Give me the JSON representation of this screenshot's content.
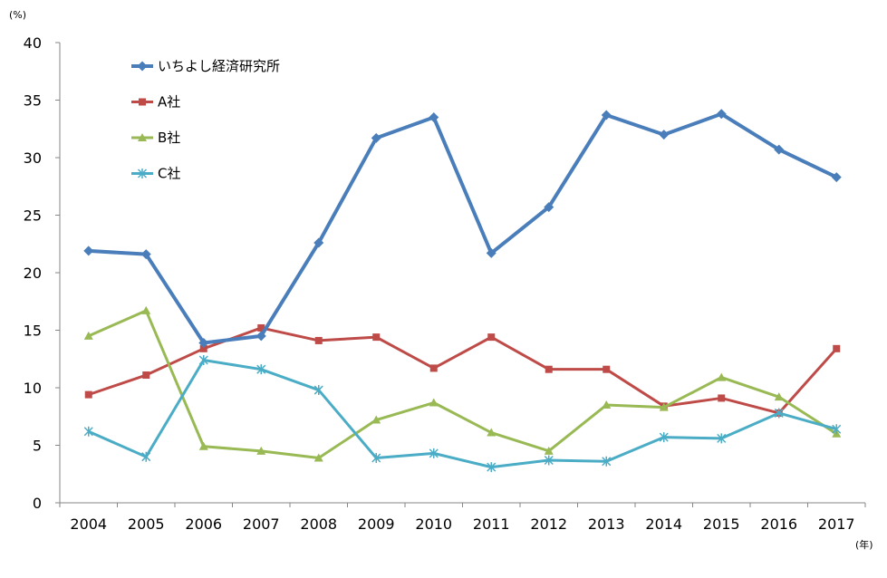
{
  "chart_data": {
    "type": "line",
    "title": "",
    "y_unit_label": "(%)",
    "x_unit_label": "(年)",
    "ylim": [
      0,
      40
    ],
    "y_ticks": [
      0,
      5,
      10,
      15,
      20,
      25,
      30,
      35,
      40
    ],
    "grid": false,
    "legend_position": "top-left",
    "x": [
      "2004",
      "2005",
      "2006",
      "2007",
      "2008",
      "2009",
      "2010",
      "2011",
      "2012",
      "2013",
      "2014",
      "2015",
      "2016",
      "2017"
    ],
    "series": [
      {
        "name": "いちよし経済研究所",
        "color": "#4a7ebb",
        "marker": "diamond",
        "values": [
          21.9,
          21.6,
          13.9,
          14.5,
          22.6,
          31.7,
          33.5,
          21.7,
          25.7,
          33.7,
          32.0,
          33.8,
          30.7,
          28.3
        ]
      },
      {
        "name": "A社",
        "color": "#be4b48",
        "marker": "square",
        "values": [
          9.4,
          11.1,
          13.4,
          15.2,
          14.1,
          14.4,
          11.7,
          14.4,
          11.6,
          11.6,
          8.4,
          9.1,
          7.8,
          13.4
        ]
      },
      {
        "name": "B社",
        "color": "#98b954",
        "marker": "triangle",
        "values": [
          14.5,
          16.7,
          4.9,
          4.5,
          3.9,
          7.2,
          8.7,
          6.1,
          4.5,
          8.5,
          8.3,
          10.9,
          9.2,
          6.0
        ]
      },
      {
        "name": "C社",
        "color": "#4bacc6",
        "marker": "star",
        "values": [
          6.2,
          4.0,
          12.4,
          11.6,
          9.8,
          3.9,
          4.3,
          3.1,
          3.7,
          3.6,
          5.7,
          5.6,
          7.8,
          6.4
        ]
      }
    ]
  }
}
